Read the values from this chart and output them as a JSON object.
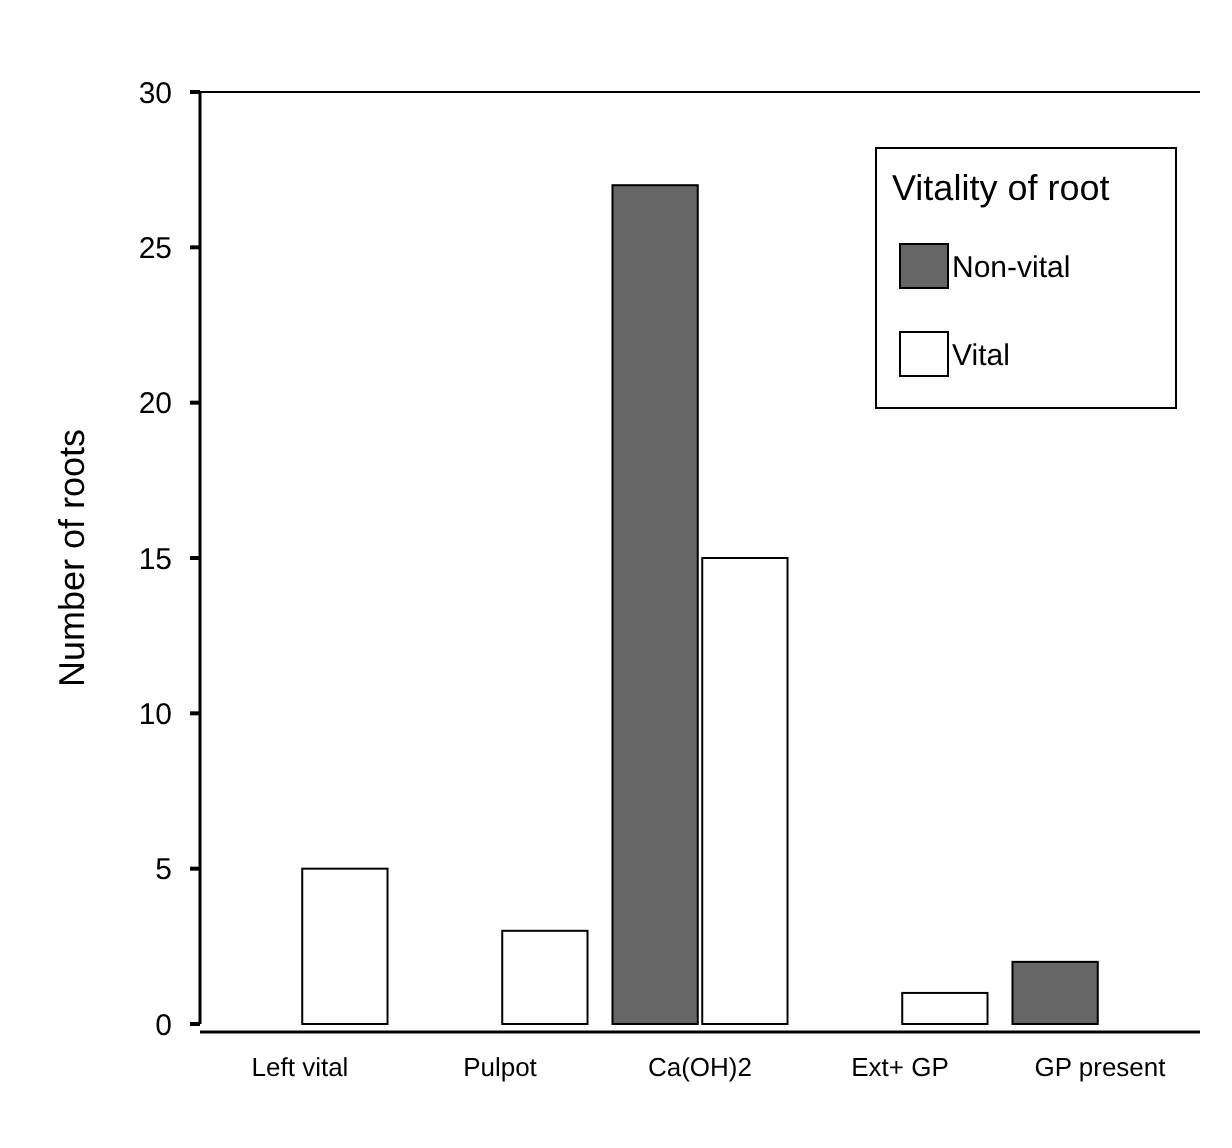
{
  "chart_data": {
    "type": "bar",
    "ylabel": "Number of roots",
    "legend_title": "Vitality of root",
    "legend": "top right",
    "grid": false,
    "categories": [
      "Left vital",
      "Pulpot",
      "Ca(OH)2",
      "Ext+ GP",
      "GP present"
    ],
    "series": [
      {
        "name": "Non-vital",
        "color": "#666666",
        "values": [
          0,
          0,
          27,
          0,
          2
        ]
      },
      {
        "name": "Vital",
        "color": "#ffffff",
        "values": [
          5,
          3,
          15,
          1,
          0
        ]
      }
    ],
    "ylim": [
      0,
      30
    ],
    "yticks": [
      0,
      5,
      10,
      15,
      20,
      25,
      30
    ]
  }
}
